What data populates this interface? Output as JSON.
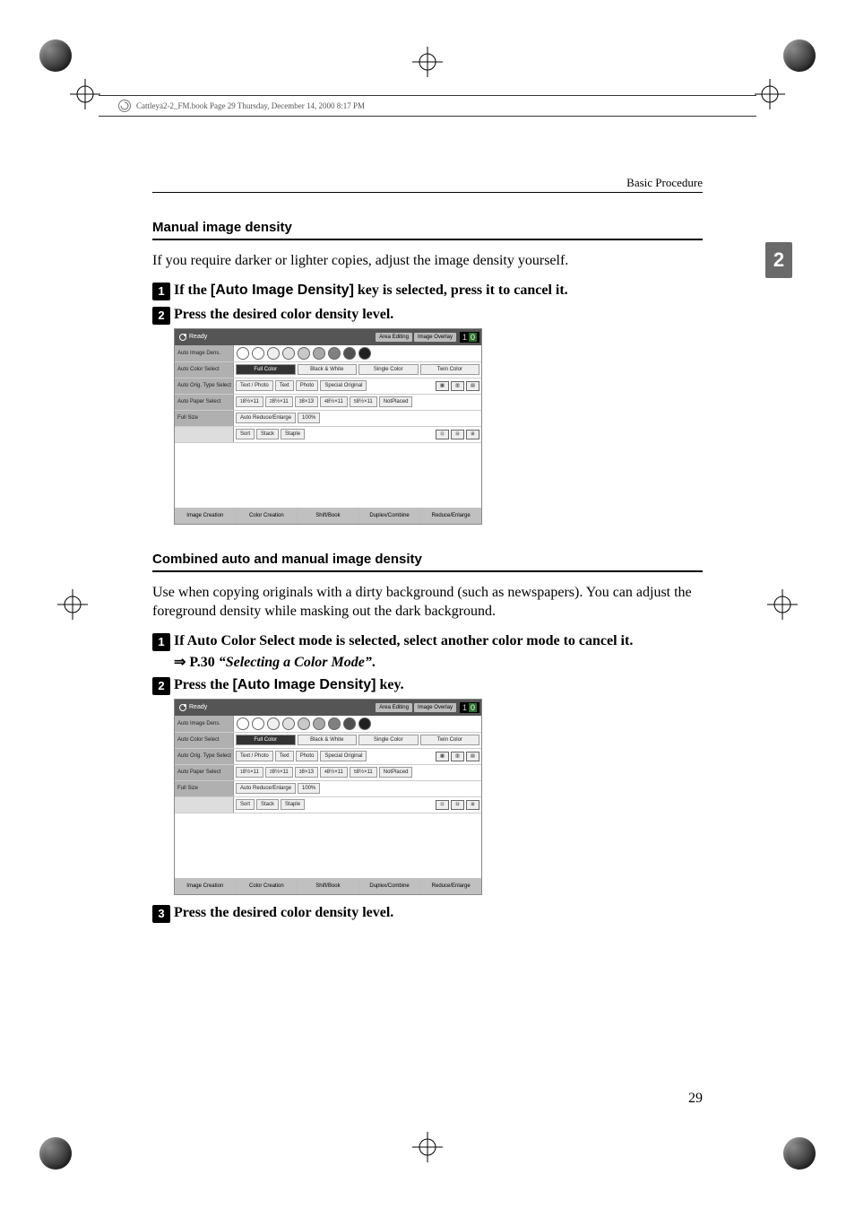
{
  "crop_marks": {
    "stroke": "#000000"
  },
  "book_header": "Cattleya2-2_FM.book  Page 29  Thursday, December 14, 2000  8:17 PM",
  "running_head": "Basic Procedure",
  "side_tab": "2",
  "page_number": "29",
  "sections": {
    "manual": {
      "heading": "Manual image density",
      "intro": "If you require darker or lighter copies, adjust the image density yourself.",
      "steps": [
        {
          "n": "1",
          "prefix": "If the ",
          "key": "[Auto Image Density]",
          "suffix": " key is selected, press it to cancel it."
        },
        {
          "n": "2",
          "text": "Press the desired color density level."
        }
      ]
    },
    "combined": {
      "heading": "Combined auto and manual image density",
      "intro": "Use when copying originals with a dirty background (such as newspapers). You can adjust the foreground density while masking out the dark background.",
      "steps": [
        {
          "n": "1",
          "text": "If Auto Color Select mode is selected, select another color mode to cancel it.",
          "arrow": "⇒",
          "ref_prefix": "P.30 ",
          "ref": "“Selecting a Color Mode”",
          "ref_suffix": "."
        },
        {
          "n": "2",
          "prefix": "Press the ",
          "key": "[Auto Image Density]",
          "suffix": " key."
        },
        {
          "n": "3",
          "text": "Press the desired color density level."
        }
      ]
    }
  },
  "panel": {
    "ready": "Ready",
    "top_buttons": [
      "Area Editing",
      "Image Overlay"
    ],
    "count_left": "1",
    "count_right": "0",
    "rows": {
      "density": {
        "label": "Auto Image Dens.",
        "shades": [
          "#ffffff",
          "#ffffff",
          "#f0f0f0",
          "#e0e0e0",
          "#c8c8c8",
          "#a8a8a8",
          "#808080",
          "#505050",
          "#202020"
        ]
      },
      "color": {
        "label": "Auto Color Select",
        "buttons": [
          "Full Color",
          "Black & White",
          "Single Color",
          "Twin Color"
        ]
      },
      "orig": {
        "label": "Auto Orig. Type Select",
        "buttons": [
          "Text / Photo",
          "Text",
          "Photo",
          "Special Original"
        ]
      },
      "paper": {
        "label": "Auto Paper Select",
        "buttons": [
          "8½×11",
          "8½×11",
          "8×13",
          "8½×11",
          "8½×11"
        ],
        "not_placed": "NotPlaced"
      },
      "size": {
        "label": "Full Size",
        "buttons": [
          "Auto Reduce/Enlarge",
          "100%"
        ]
      },
      "finish": {
        "label": "",
        "buttons": [
          "Sort",
          "Stack",
          "Staple"
        ]
      }
    },
    "bottom": [
      "Image Creation",
      "Color Creation",
      "Shift/Book",
      "Duplex/Combine",
      "Reduce/Enlarge"
    ]
  }
}
